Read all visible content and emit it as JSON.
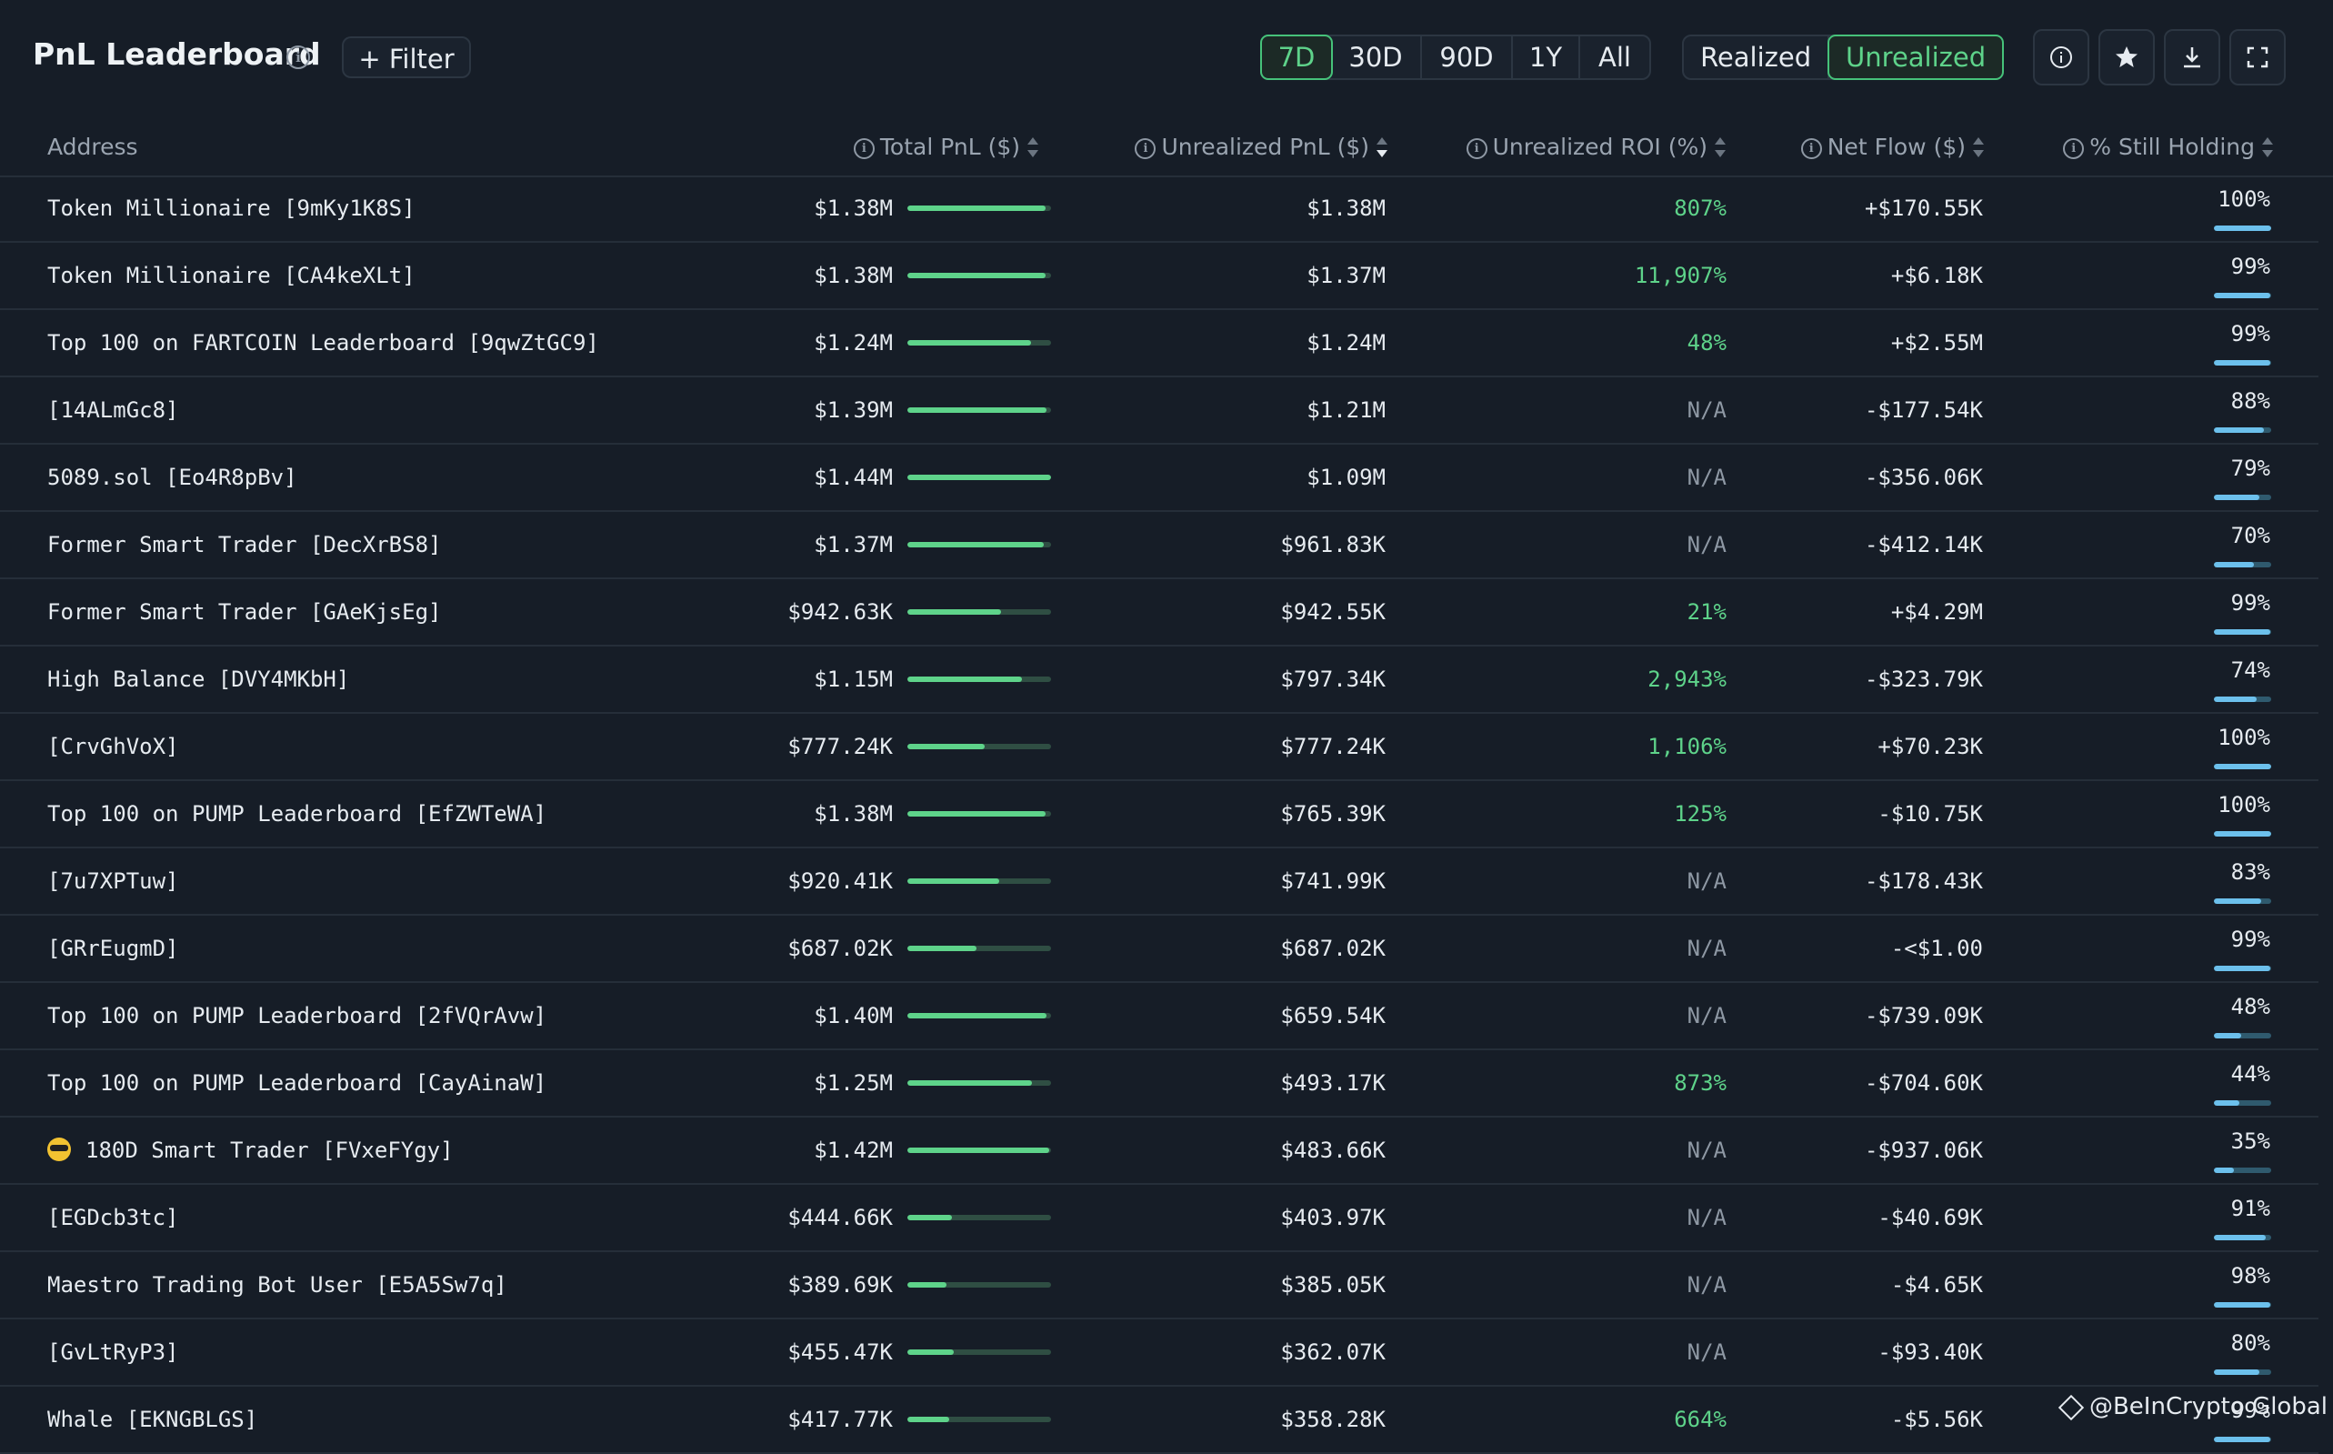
{
  "header": {
    "title": "PnL Leaderboard",
    "filter_label": "Filter",
    "time_ranges": [
      "7D",
      "30D",
      "90D",
      "1Y",
      "All"
    ],
    "time_range_selected": "7D",
    "pnl_modes": [
      "Realized",
      "Unrealized"
    ],
    "pnl_mode_selected": "Unrealized",
    "icons": [
      "info-icon",
      "star-icon",
      "download-icon",
      "fullscreen-icon"
    ]
  },
  "columns": {
    "address": "Address",
    "total_pnl": "Total PnL ($)",
    "unrealized_pnl": "Unrealized PnL ($)",
    "unrealized_roi": "Unrealized ROI (%)",
    "net_flow": "Net Flow ($)",
    "still_holding": "% Still Holding",
    "sorted_by": "unrealized_pnl",
    "sort_direction": "desc"
  },
  "rows": [
    {
      "address": "Token Millionaire [9mKy1K8S]",
      "total_pnl": "$1.38M",
      "total_pnl_bar": 0.96,
      "unrealized_pnl": "$1.38M",
      "roi": "807%",
      "net_flow": "+$170.55K",
      "still_holding": "100%",
      "hold_fraction": 1.0
    },
    {
      "address": "Token Millionaire [CA4keXLt]",
      "total_pnl": "$1.38M",
      "total_pnl_bar": 0.96,
      "unrealized_pnl": "$1.37M",
      "roi": "11,907%",
      "net_flow": "+$6.18K",
      "still_holding": "99%",
      "hold_fraction": 0.99
    },
    {
      "address": "Top 100 on FARTCOIN Leaderboard [9qwZtGC9]",
      "total_pnl": "$1.24M",
      "total_pnl_bar": 0.86,
      "unrealized_pnl": "$1.24M",
      "roi": "48%",
      "net_flow": "+$2.55M",
      "still_holding": "99%",
      "hold_fraction": 0.99
    },
    {
      "address": "[14ALmGc8]",
      "total_pnl": "$1.39M",
      "total_pnl_bar": 0.97,
      "unrealized_pnl": "$1.21M",
      "roi": "N/A",
      "net_flow": "-$177.54K",
      "still_holding": "88%",
      "hold_fraction": 0.88
    },
    {
      "address": "5089.sol [Eo4R8pBv]",
      "total_pnl": "$1.44M",
      "total_pnl_bar": 1.0,
      "unrealized_pnl": "$1.09M",
      "roi": "N/A",
      "net_flow": "-$356.06K",
      "still_holding": "79%",
      "hold_fraction": 0.79
    },
    {
      "address": "Former Smart Trader [DecXrBS8]",
      "total_pnl": "$1.37M",
      "total_pnl_bar": 0.95,
      "unrealized_pnl": "$961.83K",
      "roi": "N/A",
      "net_flow": "-$412.14K",
      "still_holding": "70%",
      "hold_fraction": 0.7
    },
    {
      "address": "Former Smart Trader [GAeKjsEg]",
      "total_pnl": "$942.63K",
      "total_pnl_bar": 0.65,
      "unrealized_pnl": "$942.55K",
      "roi": "21%",
      "net_flow": "+$4.29M",
      "still_holding": "99%",
      "hold_fraction": 0.99
    },
    {
      "address": "High Balance [DVY4MKbH]",
      "total_pnl": "$1.15M",
      "total_pnl_bar": 0.8,
      "unrealized_pnl": "$797.34K",
      "roi": "2,943%",
      "net_flow": "-$323.79K",
      "still_holding": "74%",
      "hold_fraction": 0.74
    },
    {
      "address": "[CrvGhVoX]",
      "total_pnl": "$777.24K",
      "total_pnl_bar": 0.54,
      "unrealized_pnl": "$777.24K",
      "roi": "1,106%",
      "net_flow": "+$70.23K",
      "still_holding": "100%",
      "hold_fraction": 1.0
    },
    {
      "address": "Top 100 on PUMP Leaderboard [EfZWTeWA]",
      "total_pnl": "$1.38M",
      "total_pnl_bar": 0.96,
      "unrealized_pnl": "$765.39K",
      "roi": "125%",
      "net_flow": "-$10.75K",
      "still_holding": "100%",
      "hold_fraction": 1.0
    },
    {
      "address": "[7u7XPTuw]",
      "total_pnl": "$920.41K",
      "total_pnl_bar": 0.64,
      "unrealized_pnl": "$741.99K",
      "roi": "N/A",
      "net_flow": "-$178.43K",
      "still_holding": "83%",
      "hold_fraction": 0.83
    },
    {
      "address": "[GRrEugmD]",
      "total_pnl": "$687.02K",
      "total_pnl_bar": 0.48,
      "unrealized_pnl": "$687.02K",
      "roi": "N/A",
      "net_flow": "-<$1.00",
      "still_holding": "99%",
      "hold_fraction": 0.99
    },
    {
      "address": "Top 100 on PUMP Leaderboard [2fVQrAvw]",
      "total_pnl": "$1.40M",
      "total_pnl_bar": 0.97,
      "unrealized_pnl": "$659.54K",
      "roi": "N/A",
      "net_flow": "-$739.09K",
      "still_holding": "48%",
      "hold_fraction": 0.48
    },
    {
      "address": "Top 100 on PUMP Leaderboard [CayAinaW]",
      "total_pnl": "$1.25M",
      "total_pnl_bar": 0.87,
      "unrealized_pnl": "$493.17K",
      "roi": "873%",
      "net_flow": "-$704.60K",
      "still_holding": "44%",
      "hold_fraction": 0.44
    },
    {
      "address": "180D Smart Trader [FVxeFYgy]",
      "emoji": "sunglasses-emoji",
      "total_pnl": "$1.42M",
      "total_pnl_bar": 0.99,
      "unrealized_pnl": "$483.66K",
      "roi": "N/A",
      "net_flow": "-$937.06K",
      "still_holding": "35%",
      "hold_fraction": 0.35
    },
    {
      "address": "[EGDcb3tc]",
      "total_pnl": "$444.66K",
      "total_pnl_bar": 0.31,
      "unrealized_pnl": "$403.97K",
      "roi": "N/A",
      "net_flow": "-$40.69K",
      "still_holding": "91%",
      "hold_fraction": 0.91
    },
    {
      "address": "Maestro Trading Bot User [E5A5Sw7q]",
      "total_pnl": "$389.69K",
      "total_pnl_bar": 0.27,
      "unrealized_pnl": "$385.05K",
      "roi": "N/A",
      "net_flow": "-$4.65K",
      "still_holding": "98%",
      "hold_fraction": 0.98
    },
    {
      "address": "[GvLtRyP3]",
      "total_pnl": "$455.47K",
      "total_pnl_bar": 0.32,
      "unrealized_pnl": "$362.07K",
      "roi": "N/A",
      "net_flow": "-$93.40K",
      "still_holding": "80%",
      "hold_fraction": 0.8
    },
    {
      "address": "Whale [EKNGBLGS]",
      "total_pnl": "$417.77K",
      "total_pnl_bar": 0.29,
      "unrealized_pnl": "$358.28K",
      "roi": "664%",
      "net_flow": "-$5.56K",
      "still_holding": "99%",
      "hold_fraction": 0.99
    }
  ],
  "colors": {
    "background": "#161d27",
    "accent_green": "#5ed38a",
    "hold_blue": "#6cc0ec",
    "muted": "#8e98a4"
  },
  "watermark": "@BeInCrypto Global"
}
